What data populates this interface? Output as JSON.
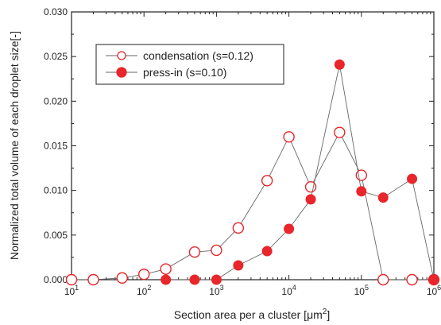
{
  "chart_data": {
    "type": "line",
    "xscale": "log",
    "xlim": [
      10,
      1000000
    ],
    "ylim": [
      0,
      0.03
    ],
    "xlabel": "Section area per a cluster [",
    "xlabel_unit": "μm",
    "xlabel_sup": "2",
    "xlabel_end": "]",
    "ylabel": "Normalized total volume of each droplet size[-]",
    "x_ticks": [
      {
        "value": 10,
        "base": "10",
        "exp": "1"
      },
      {
        "value": 100,
        "base": "10",
        "exp": "2"
      },
      {
        "value": 1000,
        "base": "10",
        "exp": "3"
      },
      {
        "value": 10000,
        "base": "10",
        "exp": "4"
      },
      {
        "value": 100000,
        "base": "10",
        "exp": "5"
      },
      {
        "value": 1000000,
        "base": "10",
        "exp": "6"
      }
    ],
    "y_ticks": [
      "0.000",
      "0.005",
      "0.010",
      "0.015",
      "0.020",
      "0.025",
      "0.030"
    ],
    "legend_position": "top-left",
    "series": [
      {
        "name": "condensation (s=0.12)",
        "marker": "open-circle",
        "color": "#e8262b",
        "line_color": "#666666",
        "x": [
          10,
          20,
          50,
          100,
          200,
          500,
          1000,
          2000,
          5000,
          10000,
          20000,
          50000,
          100000,
          200000,
          500000,
          1000000
        ],
        "y": [
          0.0,
          0.0,
          0.0002,
          0.0006,
          0.0012,
          0.0031,
          0.0033,
          0.0058,
          0.0111,
          0.016,
          0.0104,
          0.0165,
          0.0117,
          0.0,
          0.0,
          0.0
        ]
      },
      {
        "name": "press-in (s=0.10)",
        "marker": "filled-circle",
        "color": "#e8262b",
        "line_color": "#666666",
        "x": [
          200,
          500,
          1000,
          2000,
          5000,
          10000,
          20000,
          50000,
          100000,
          200000,
          500000,
          1000000
        ],
        "y": [
          0.0,
          0.0,
          0.0,
          0.0016,
          0.0032,
          0.0057,
          0.009,
          0.0241,
          0.0099,
          0.0092,
          0.0113,
          0.0
        ]
      }
    ]
  }
}
